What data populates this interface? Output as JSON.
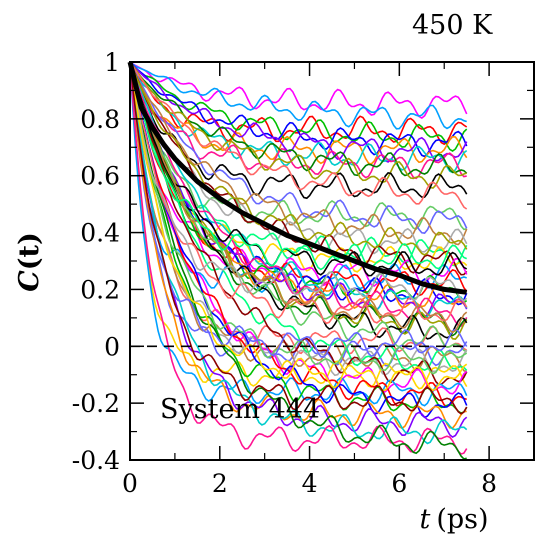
{
  "chart_data": {
    "type": "line",
    "title": "450 K",
    "xlabel": "t (ps)",
    "xlabel_var": "t",
    "xlabel_unit": "(ps)",
    "ylabel": "C(t)",
    "ylabel_var": "C",
    "ylabel_arg": "(t)",
    "annotation": "System 444",
    "xlim": [
      0,
      9
    ],
    "ylim": [
      -0.4,
      1
    ],
    "xticks": [
      "0",
      "2",
      "4",
      "6",
      "8"
    ],
    "yticks": [
      "-0.4",
      "-0.2",
      "0",
      "0.2",
      "0.4",
      "0.6",
      "0.8",
      "1"
    ],
    "reference_line": {
      "y": 0,
      "style": "dashed"
    },
    "grid": false,
    "average_series": {
      "color": "#000000",
      "x": [
        0,
        0.25,
        0.5,
        0.75,
        1,
        1.5,
        2,
        2.5,
        3,
        3.5,
        4,
        4.5,
        5,
        5.5,
        6,
        6.5,
        7,
        7.5
      ],
      "y": [
        1.0,
        0.84,
        0.77,
        0.71,
        0.66,
        0.58,
        0.52,
        0.47,
        0.43,
        0.39,
        0.36,
        0.33,
        0.3,
        0.27,
        0.25,
        0.22,
        0.2,
        0.19
      ]
    },
    "individual_series": {
      "count": 60,
      "x_end": 7.5,
      "colors": [
        "#ff00ff",
        "#00a0ff",
        "#ff0000",
        "#00c000",
        "#0000ff",
        "#ff8c00",
        "#8000ff",
        "#00cccc",
        "#ff1493",
        "#008000",
        "#a0a000",
        "#000000",
        "#ff6666",
        "#66cc66",
        "#6666ff",
        "#c08040",
        "#aaaaaa",
        "#00ff7f",
        "#ffd700",
        "#8b0000"
      ],
      "final_values": [
        0.85,
        0.8,
        0.76,
        0.73,
        0.71,
        0.69,
        0.68,
        0.66,
        0.64,
        0.62,
        0.59,
        0.56,
        0.52,
        0.46,
        0.43,
        0.39,
        0.36,
        0.33,
        0.3,
        0.28,
        0.26,
        0.24,
        0.22,
        0.2,
        0.18,
        0.16,
        0.14,
        0.12,
        0.1,
        0.08,
        0.06,
        0.04,
        0.02,
        0.0,
        -0.02,
        -0.04,
        -0.06,
        -0.08,
        -0.1,
        -0.12,
        -0.14,
        -0.16,
        -0.18,
        -0.2,
        -0.22,
        -0.24,
        -0.27,
        -0.3,
        -0.33,
        -0.36,
        0.35,
        0.28,
        0.12,
        -0.05,
        0.01,
        0.09,
        0.21,
        0.31,
        -0.11,
        -0.19
      ]
    }
  }
}
